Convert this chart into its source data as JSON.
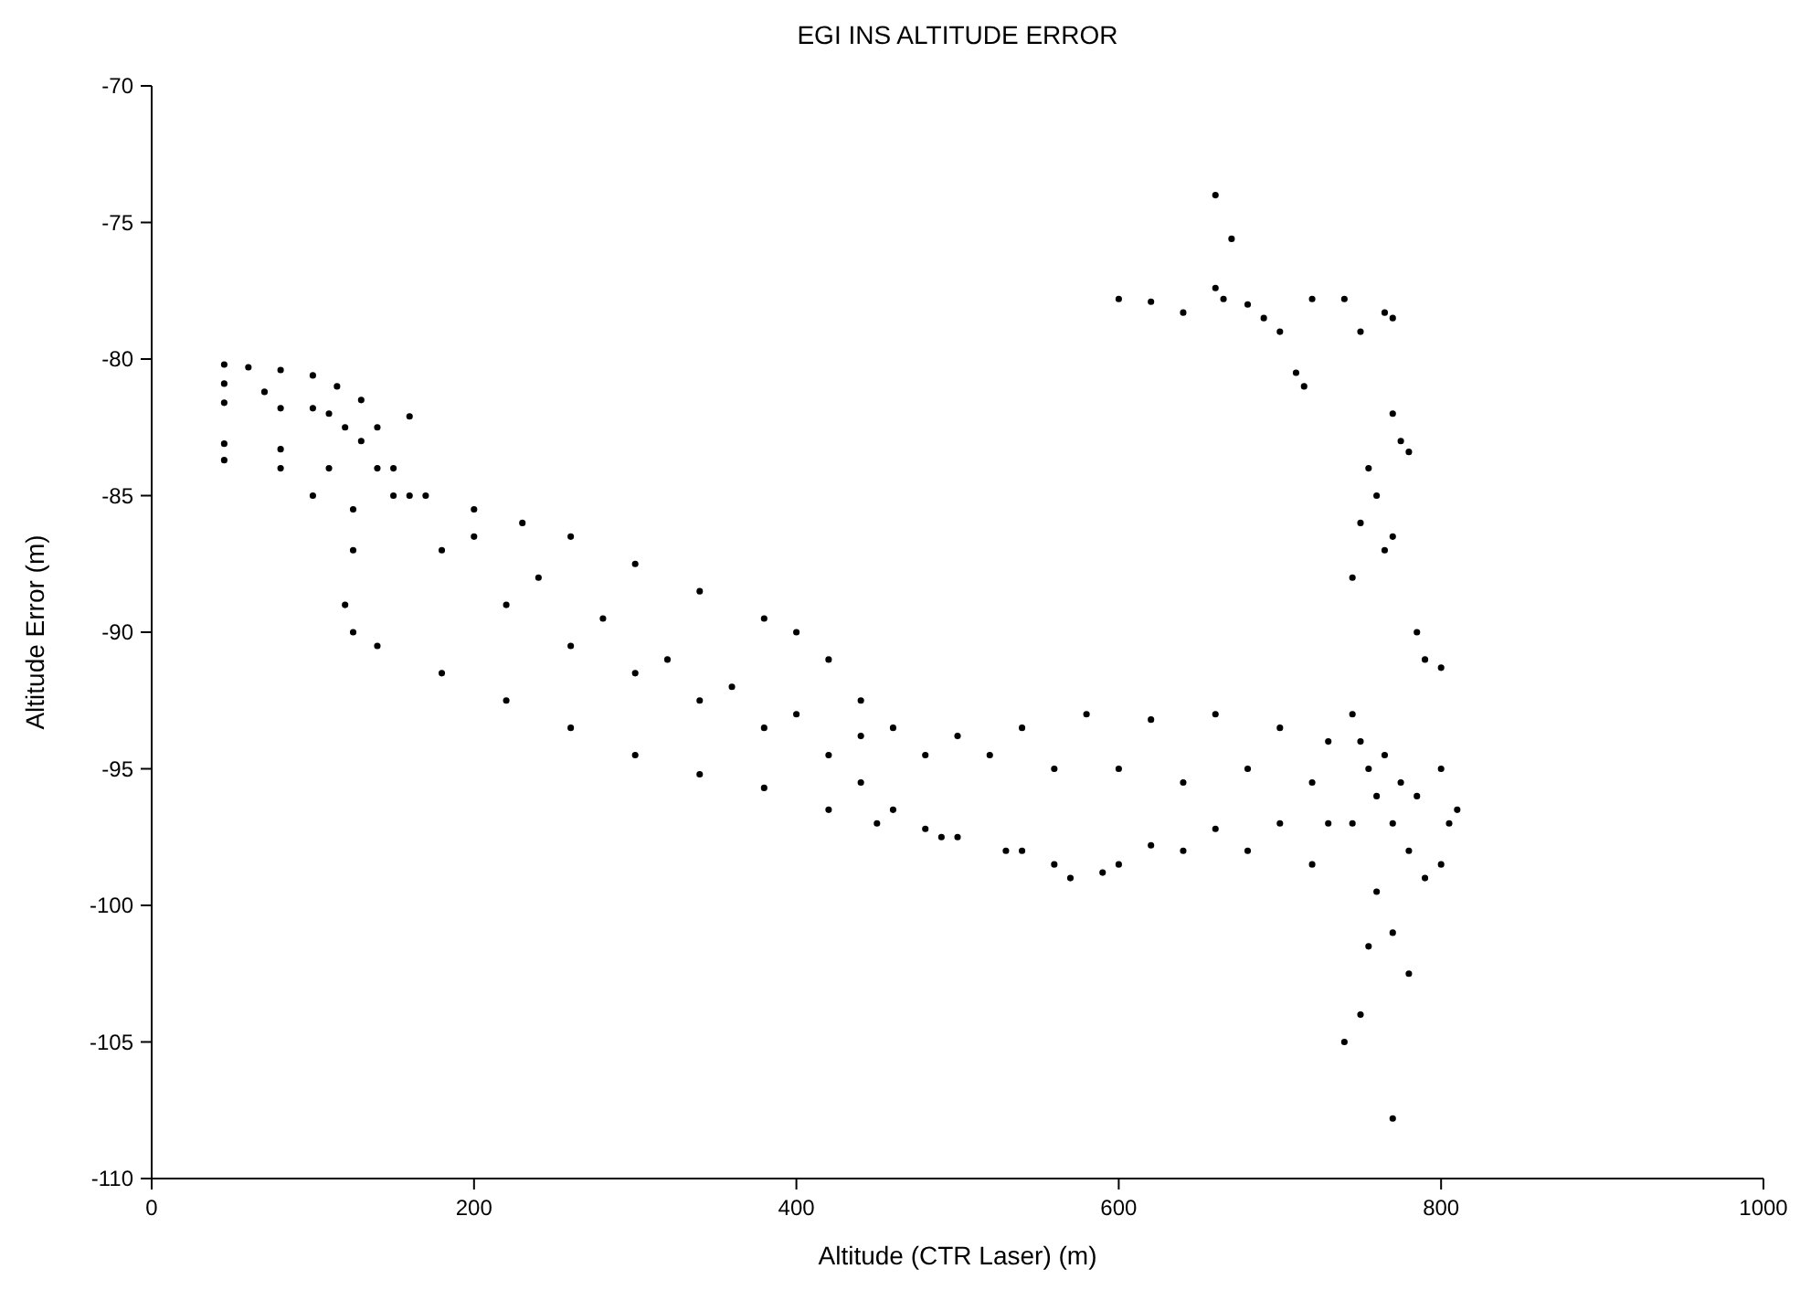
{
  "chart_data": {
    "type": "scatter",
    "title": "EGI INS ALTITUDE ERROR",
    "xlabel": "Altitude (CTR Laser) (m)",
    "ylabel": "Altitude Error (m)",
    "xlim": [
      0,
      1000
    ],
    "ylim": [
      -110,
      -70
    ],
    "xticks": [
      0,
      200,
      400,
      600,
      800,
      1000
    ],
    "yticks": [
      -110,
      -105,
      -100,
      -95,
      -90,
      -85,
      -80,
      -75,
      -70
    ],
    "grid": false,
    "marker": "circle",
    "series": [
      {
        "color": "#000000",
        "x": [
          45,
          60,
          80,
          100,
          115,
          130,
          140,
          150,
          170,
          200,
          230,
          260,
          300,
          340,
          380,
          400,
          420,
          440,
          460,
          500,
          540,
          580,
          620,
          660,
          700,
          730,
          45,
          70,
          100,
          120,
          140,
          160,
          200,
          240,
          280,
          320,
          360,
          400,
          440,
          480,
          520,
          560,
          600,
          640,
          680,
          720,
          45,
          80,
          110,
          130,
          150,
          180,
          220,
          260,
          300,
          340,
          380,
          420,
          440,
          460,
          480,
          500,
          540,
          570,
          590,
          620,
          660,
          700,
          730,
          45,
          80,
          110,
          125,
          125,
          120,
          125,
          140,
          180,
          220,
          260,
          300,
          340,
          380,
          420,
          450,
          490,
          530,
          560,
          600,
          640,
          680,
          720,
          45,
          80,
          100,
          160,
          745,
          750,
          755,
          760,
          765,
          770,
          775,
          780,
          785,
          790,
          745,
          760,
          770,
          755,
          780,
          750,
          740,
          770,
          800,
          805,
          810,
          800,
          745,
          750,
          755,
          760,
          765,
          770,
          770,
          775,
          780,
          770,
          765,
          740,
          750,
          720,
          700,
          710,
          715,
          680,
          665,
          660,
          660,
          670,
          600,
          620,
          640,
          690,
          800,
          790,
          785
        ],
        "values": [
          -80.2,
          -80.3,
          -80.4,
          -80.6,
          -81,
          -81.5,
          -82.5,
          -84,
          -85,
          -85.5,
          -86,
          -86.5,
          -87.5,
          -88.5,
          -89.5,
          -90,
          -91,
          -92.5,
          -93.5,
          -93.8,
          -93.5,
          -93,
          -93.2,
          -93,
          -93.5,
          -94,
          -80.9,
          -81.2,
          -81.8,
          -82.5,
          -84,
          -85,
          -86.5,
          -88,
          -89.5,
          -91,
          -92,
          -93,
          -93.8,
          -94.5,
          -94.5,
          -95,
          -95,
          -95.5,
          -95,
          -95.5,
          -81.6,
          -81.8,
          -82,
          -83,
          -85,
          -87,
          -89,
          -90.5,
          -91.5,
          -92.5,
          -93.5,
          -94.5,
          -95.5,
          -96.5,
          -97.2,
          -97.5,
          -98,
          -99,
          -98.8,
          -97.8,
          -97.2,
          -97,
          -97,
          -83.1,
          -83.3,
          -84,
          -85.5,
          -87,
          -89,
          -90,
          -90.5,
          -91.5,
          -92.5,
          -93.5,
          -94.5,
          -95.2,
          -95.7,
          -96.5,
          -97,
          -97.5,
          -98,
          -98.5,
          -98.5,
          -98,
          -98,
          -98.5,
          -83.7,
          -84,
          -85,
          -82.1,
          -93,
          -94,
          -95,
          -96,
          -94.5,
          -97,
          -95.5,
          -98,
          -96,
          -99,
          -97,
          -99.5,
          -101,
          -101.5,
          -102.5,
          -104,
          -105,
          -107.8,
          -95,
          -97,
          -96.5,
          -98.5,
          -88,
          -86,
          -84,
          -85,
          -87,
          -86.5,
          -82,
          -83,
          -83.4,
          -78.5,
          -78.3,
          -77.8,
          -79,
          -77.8,
          -79,
          -80.5,
          -81,
          -78,
          -77.8,
          -77.4,
          -74,
          -75.6,
          -77.8,
          -77.9,
          -78.3,
          -78.5,
          -91.3,
          -91,
          -90
        ]
      }
    ]
  }
}
